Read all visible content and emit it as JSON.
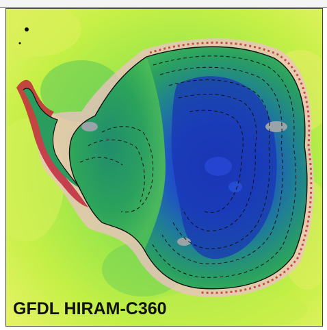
{
  "panel": {
    "model_label": "GFDL HIRAM-C360"
  },
  "colors": {
    "ocean_light": "#b6f23c",
    "ocean_mid": "#8ee050",
    "ocean_yellow": "#e6f25a",
    "coast_pink": "#f2b8c4",
    "coast_red": "#c0283c",
    "ice_green": "#2aa35a",
    "ice_teal": "#1f8a7a",
    "ice_blue": "#1f47c8",
    "ice_deep": "#1830a8",
    "contour": "#111111",
    "grey_patch": "#9aa4a8"
  }
}
